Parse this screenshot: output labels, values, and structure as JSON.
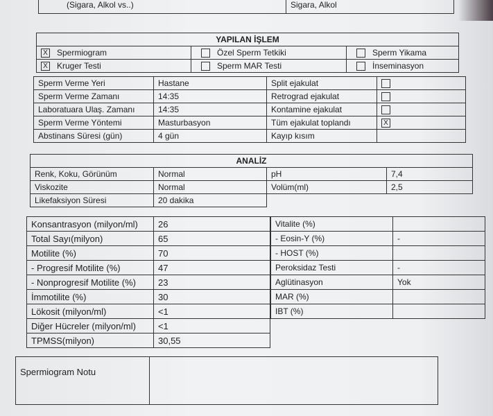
{
  "top": {
    "label": "(Sigara, Alkol vs..)",
    "value": "Sigara, Alkol"
  },
  "yapilan": {
    "title": "YAPILAN İŞLEM",
    "items": [
      {
        "label": "Spermiogram",
        "checked": true
      },
      {
        "label": "Özel Sperm Tetkiki",
        "checked": false
      },
      {
        "label": "Sperm Yikama",
        "checked": false
      },
      {
        "label": "Kruger Testi",
        "checked": true
      },
      {
        "label": "Sperm MAR Testi",
        "checked": false
      },
      {
        "label": "İnseminasyon",
        "checked": false
      }
    ]
  },
  "sperm": {
    "rows": [
      {
        "label": "Sperm Verme Yeri",
        "value": "Hastane",
        "right": "Split ejakulat",
        "checked": false
      },
      {
        "label": "Sperm Verme Zamanı",
        "value": "14:35",
        "right": "Retrograd ejakulat",
        "checked": false
      },
      {
        "label": "Laboratuara Ulaş. Zamanı",
        "value": "14:35",
        "right": "Kontamine ejakulat",
        "checked": false
      },
      {
        "label": "Sperm Verme Yöntemi",
        "value": "Masturbasyon",
        "right": "Tüm ejakulat toplandı",
        "checked": true
      },
      {
        "label": "Abstinans Süresi (gün)",
        "value": "4 gün",
        "right": "Kayıp kısım",
        "checked": null
      }
    ]
  },
  "analiz": {
    "title": "ANALİZ",
    "rows": [
      {
        "label": "Renk, Koku, Görünüm",
        "value": "Normal",
        "right": "pH",
        "rvalue": "7,4"
      },
      {
        "label": "Viskozite",
        "value": "Normal",
        "right": "Volüm(ml)",
        "rvalue": "2,5"
      },
      {
        "label": "Likefaksiyon Süresi",
        "value": "20 dakika"
      }
    ]
  },
  "results": {
    "left": [
      {
        "label": "Konsantrasyon (milyon/ml)",
        "value": "26"
      },
      {
        "label": "Total Sayı(milyon)",
        "value": "65"
      },
      {
        "label": "Motilite (%)",
        "value": "70"
      },
      {
        "label": "-  Progresif Motilite (%)",
        "value": "47"
      },
      {
        "label": "-  Nonprogresif Motilite (%)",
        "value": "23"
      },
      {
        "label": "İmmotilite (%)",
        "value": "30"
      },
      {
        "label": "Lökosit (milyon/ml)",
        "value": "<1"
      },
      {
        "label": "Diğer Hücreler (milyon/ml)",
        "value": "<1"
      },
      {
        "label": "TPMSS(milyon)",
        "value": "30,55"
      }
    ],
    "right": [
      {
        "label": "Vitalite (%)",
        "value": ""
      },
      {
        "label": "-  Eosin-Y (%)",
        "value": "-"
      },
      {
        "label": "-  HOST (%)",
        "value": ""
      },
      {
        "label": "Peroksidaz Testi",
        "value": "-"
      },
      {
        "label": "Aglütinasyon",
        "value": "Yok"
      },
      {
        "label": "MAR (%)",
        "value": ""
      },
      {
        "label": "IBT (%)",
        "value": ""
      }
    ]
  },
  "note": {
    "label": "Spermiogram Notu",
    "value": ""
  }
}
